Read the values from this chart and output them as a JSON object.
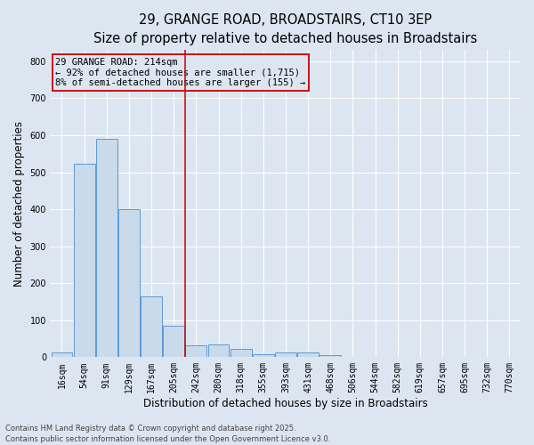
{
  "title_line1": "29, GRANGE ROAD, BROADSTAIRS, CT10 3EP",
  "title_line2": "Size of property relative to detached houses in Broadstairs",
  "xlabel": "Distribution of detached houses by size in Broadstairs",
  "ylabel": "Number of detached properties",
  "bar_labels": [
    "16sqm",
    "54sqm",
    "91sqm",
    "129sqm",
    "167sqm",
    "205sqm",
    "242sqm",
    "280sqm",
    "318sqm",
    "355sqm",
    "393sqm",
    "431sqm",
    "468sqm",
    "506sqm",
    "544sqm",
    "582sqm",
    "619sqm",
    "657sqm",
    "695sqm",
    "732sqm",
    "770sqm"
  ],
  "bar_values": [
    13,
    524,
    590,
    400,
    165,
    85,
    32,
    35,
    22,
    8,
    12,
    12,
    5,
    1,
    0,
    0,
    0,
    0,
    0,
    0,
    0
  ],
  "bar_color": "#c9daea",
  "bar_edge_color": "#5b9bd5",
  "background_color": "#dce6f1",
  "grid_color": "#ffffff",
  "vline_x": 5.5,
  "vline_color": "#cc0000",
  "annotation_line1": "29 GRANGE ROAD: 214sqm",
  "annotation_line2": "← 92% of detached houses are smaller (1,715)",
  "annotation_line3": "8% of semi-detached houses are larger (155) →",
  "annotation_box_color": "#cc0000",
  "ylim": [
    0,
    830
  ],
  "yticks": [
    0,
    100,
    200,
    300,
    400,
    500,
    600,
    700,
    800
  ],
  "footnote1": "Contains HM Land Registry data © Crown copyright and database right 2025.",
  "footnote2": "Contains public sector information licensed under the Open Government Licence v3.0.",
  "title_fontsize": 10.5,
  "subtitle_fontsize": 9.5,
  "tick_fontsize": 7,
  "ylabel_fontsize": 8.5,
  "xlabel_fontsize": 8.5,
  "annotation_fontsize": 7.5,
  "footnote_fontsize": 6
}
